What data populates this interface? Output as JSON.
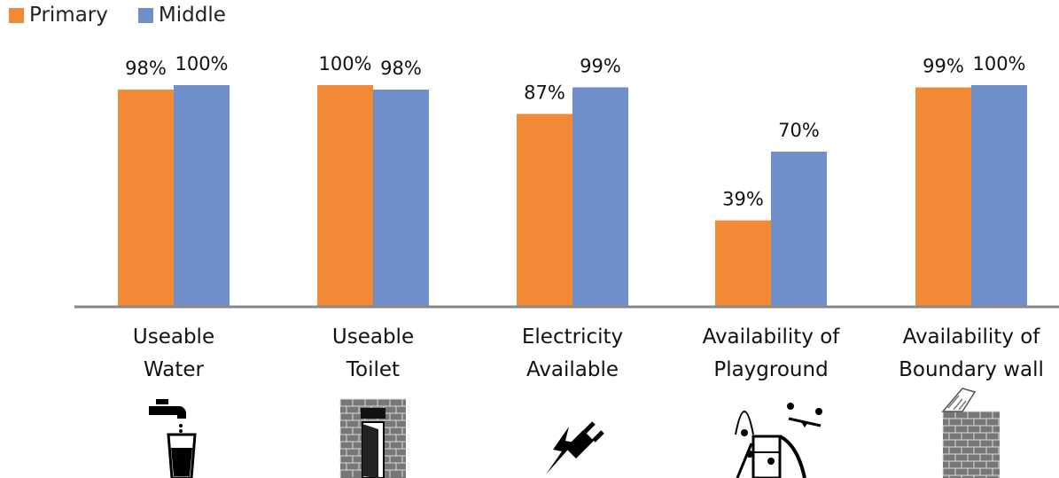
{
  "chart_data": {
    "type": "bar",
    "categories": [
      [
        "Useable",
        "Water"
      ],
      [
        "Useable",
        "Toilet"
      ],
      [
        "Electricity",
        "Available"
      ],
      [
        "Availability of",
        "Playground"
      ],
      [
        "Availability of",
        "Boundary wall"
      ]
    ],
    "series": [
      {
        "name": "Primary",
        "color": "#F28A35",
        "values": [
          98,
          100,
          87,
          39,
          99
        ],
        "labels": [
          "98%",
          "100%",
          "87%",
          "39%",
          "99%"
        ]
      },
      {
        "name": "Middle",
        "color": "#6F8FCB",
        "values": [
          100,
          98,
          99,
          70,
          100
        ],
        "labels": [
          "100%",
          "98%",
          "99%",
          "70%",
          "100%"
        ]
      }
    ],
    "ylim": [
      0,
      100
    ],
    "grid": false,
    "legend_position": "top-left",
    "icons": [
      "water-tap-icon",
      "toilet-wall-icon",
      "electric-plug-icon",
      "playground-icon",
      "boundary-wall-icon"
    ]
  }
}
